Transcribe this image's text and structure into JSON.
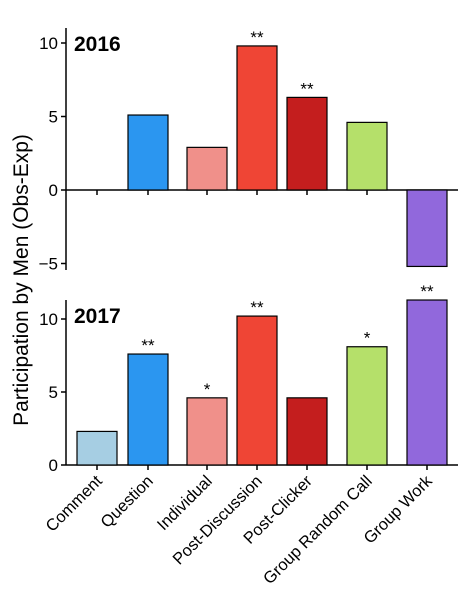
{
  "chart_data": {
    "type": "bar",
    "ylabel": "Participation by Men (Obs-Exp)",
    "categories": [
      "Comment",
      "Question",
      "Individual",
      "Post-Discussion",
      "Post-Clicker",
      "Group Random Call",
      "Group Work"
    ],
    "colors": [
      "#a6cee3",
      "#2b96f0",
      "#f0908a",
      "#ef4535",
      "#c41e1e",
      "#b5e06a",
      "#9168dc"
    ],
    "panels": [
      {
        "title": "2016",
        "ylim": [
          -5.3,
          10.6
        ],
        "yticks": [
          -5,
          0,
          5,
          10
        ],
        "ytick_labels": [
          "−5",
          "0",
          "5",
          "10"
        ],
        "values": [
          null,
          5.1,
          2.9,
          9.8,
          6.3,
          4.6,
          -5.2
        ],
        "significance": [
          "",
          "",
          "",
          "**",
          "**",
          "",
          ""
        ]
      },
      {
        "title": "2017",
        "ylim": [
          0,
          11.5
        ],
        "yticks": [
          0,
          5,
          10
        ],
        "ytick_labels": [
          "0",
          "5",
          "10"
        ],
        "values": [
          2.3,
          7.6,
          4.6,
          10.2,
          4.6,
          8.1,
          11.3
        ],
        "significance": [
          "",
          "**",
          "*",
          "**",
          "",
          "*",
          "**"
        ]
      }
    ]
  }
}
